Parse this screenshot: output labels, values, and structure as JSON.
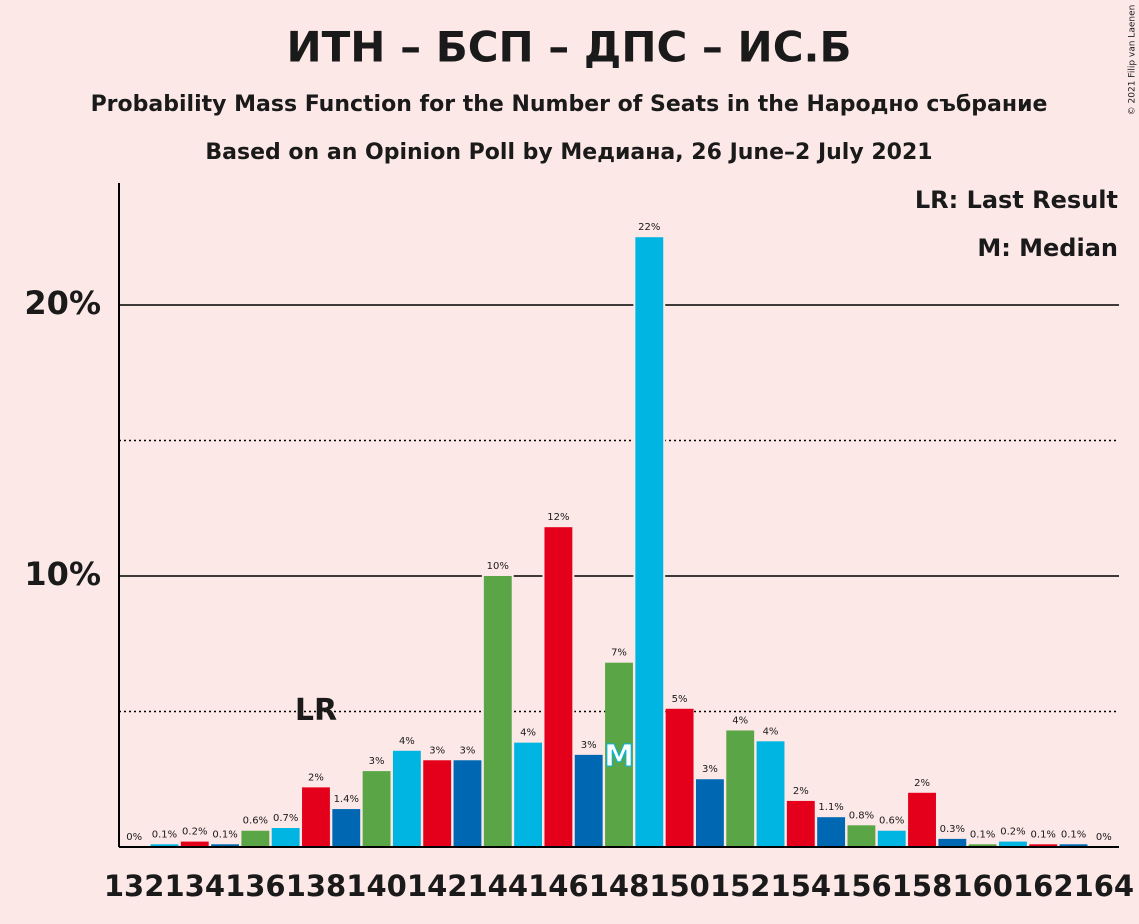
{
  "chart_data": {
    "type": "bar",
    "title": "ИТН – БСП – ДПС – ИС.Б",
    "subtitle": "Probability Mass Function for the Number of Seats in the Народно събрание",
    "subtitle2": "Based on an Opinion Poll by Медиана, 26 June–2 July 2021",
    "legend": [
      "LR: Last Result",
      "M: Median"
    ],
    "copyright": "© 2021 Filip van Laenen",
    "x": [
      132,
      133,
      134,
      135,
      136,
      137,
      138,
      139,
      140,
      141,
      142,
      143,
      144,
      145,
      146,
      147,
      148,
      149,
      150,
      151,
      152,
      153,
      154,
      155,
      156,
      157,
      158,
      159,
      160,
      161,
      162,
      163,
      164
    ],
    "values": [
      0,
      0.1,
      0.2,
      0.1,
      0.6,
      0.7,
      2.2,
      1.4,
      2.8,
      3.55,
      3.2,
      3.2,
      10.0,
      3.85,
      11.8,
      3.4,
      6.8,
      22.5,
      5.1,
      2.5,
      4.3,
      3.9,
      1.7,
      1.1,
      0.8,
      0.6,
      2.0,
      0.3,
      0.1,
      0.2,
      0.1,
      0.1,
      0
    ],
    "value_labels": [
      "0%",
      "0.1%",
      "0.2%",
      "0.1%",
      "0.6%",
      "0.7%",
      "2%",
      "1.4%",
      "3%",
      "4%",
      "3%",
      "3%",
      "10%",
      "4%",
      "12%",
      "3%",
      "7%",
      "22%",
      "5%",
      "3%",
      "4%",
      "4%",
      "2%",
      "1.1%",
      "0.8%",
      "0.6%",
      "2%",
      "0.3%",
      "0.1%",
      "0.2%",
      "0.1%",
      "0.1%",
      "0%"
    ],
    "colors": [
      "#00b5e2",
      "#e4001b",
      "#0068b3",
      "#5aa646"
    ],
    "xlim": [
      131.5,
      164.5
    ],
    "xticks": [
      132,
      134,
      136,
      138,
      140,
      142,
      144,
      146,
      148,
      150,
      152,
      154,
      156,
      158,
      160,
      162,
      164
    ],
    "ylim": [
      0,
      24.5
    ],
    "yticks": [
      {
        "value": 10,
        "label": "10%"
      },
      {
        "value": 20,
        "label": "20%"
      }
    ],
    "minor_yticks": [
      5,
      15
    ],
    "annotations": [
      {
        "text": "LR",
        "x": 138,
        "y": 5
      },
      {
        "text": "M",
        "x": 148,
        "y": 3.3
      }
    ]
  }
}
